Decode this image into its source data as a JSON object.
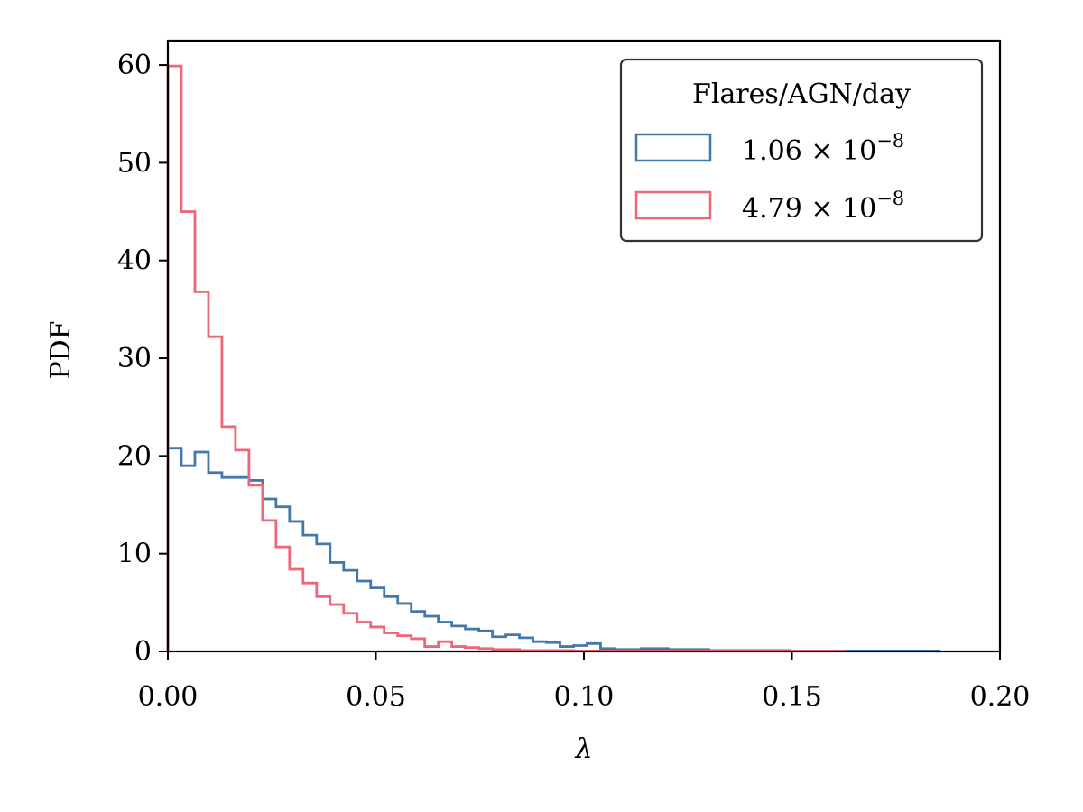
{
  "chart_data": {
    "type": "histogram",
    "xlabel": "λ",
    "ylabel": "PDF",
    "xlim": [
      0,
      0.2
    ],
    "ylim": [
      0,
      62.5
    ],
    "xticks": [
      0.0,
      0.05,
      0.1,
      0.15,
      0.2
    ],
    "xtick_labels": [
      "0.00",
      "0.05",
      "0.10",
      "0.15",
      "0.20"
    ],
    "yticks": [
      0,
      10,
      20,
      30,
      40,
      50,
      60
    ],
    "ytick_labels": [
      "0",
      "10",
      "20",
      "30",
      "40",
      "50",
      "60"
    ],
    "grid": false,
    "legend": {
      "title": "Flares/AGN/day",
      "placement": "top-right"
    },
    "series": [
      {
        "name": "1.06 × 10⁻⁸",
        "label_base": "1.06 × 10",
        "label_exp": "−8",
        "color": "#4477AA",
        "bin_width": 0.00325,
        "values": [
          20.8,
          19.0,
          20.4,
          18.3,
          17.8,
          17.8,
          17.5,
          15.6,
          14.8,
          13.3,
          11.9,
          11.0,
          9.1,
          8.3,
          7.2,
          6.5,
          5.6,
          4.9,
          4.1,
          3.6,
          3.0,
          2.6,
          2.3,
          2.1,
          1.5,
          1.7,
          1.4,
          1.0,
          0.9,
          0.5,
          0.6,
          0.8,
          0.3,
          0.2,
          0.2,
          0.3,
          0.3,
          0.2,
          0.2,
          0.2,
          0.1,
          0.1,
          0.1,
          0.1,
          0.1,
          0.1,
          0.05,
          0.05,
          0.05,
          0.05,
          0.05,
          0.05,
          0.05,
          0.05,
          0.05,
          0.05,
          0.05
        ]
      },
      {
        "name": "4.79 × 10⁻⁸",
        "label_base": "4.79 × 10",
        "label_exp": "−8",
        "color": "#EE6677",
        "bin_width": 0.00325,
        "values": [
          59.9,
          45.0,
          36.8,
          32.2,
          23.0,
          20.6,
          17.0,
          13.4,
          10.7,
          8.4,
          7.0,
          5.6,
          4.8,
          3.9,
          3.0,
          2.5,
          1.9,
          1.6,
          1.3,
          0.5,
          1.0,
          0.5,
          0.4,
          0.3,
          0.2,
          0.2,
          0.1,
          0.1,
          0.1,
          0.1,
          0.05,
          0.05,
          0.05,
          0.05,
          0.05,
          0.05,
          0.05,
          0.05,
          0.05,
          0.05,
          0.05,
          0.05,
          0.05,
          0.05,
          0.05,
          0.05,
          0.05,
          0.05,
          0.05,
          0.05
        ]
      }
    ]
  }
}
